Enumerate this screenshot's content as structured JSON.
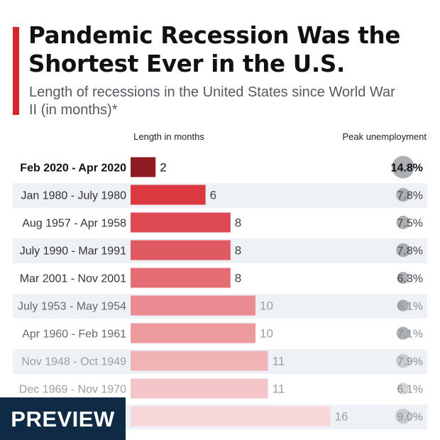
{
  "header": {
    "title": "Pandemic Recession Was the Shortest Ever in the U.S.",
    "subtitle": "Length of recessions in the United States since World War II (in months)*"
  },
  "badge": {
    "label": "PREVIEW"
  },
  "colors": {
    "accent": "#d7262e",
    "row_band": "#eef1f6",
    "dot": "#a3a7ac"
  },
  "chart_data": {
    "type": "bar",
    "orientation": "horizontal",
    "xlabel": "Length in months",
    "extra_column_label": "Peak unemployment",
    "categories": [
      "Feb 2020 - Apr 2020",
      "Jan 1980 - July 1980",
      "Aug 1957 - Apr 1958",
      "July 1990 - Mar 1991",
      "Mar 2001 - Nov 2001",
      "July 1953 - May 1954",
      "Apr 1960 - Feb 1961",
      "Nov 1948 - Oct 1949",
      "Dec 1969 - Nov 1970",
      ""
    ],
    "values": [
      2,
      6,
      8,
      8,
      8,
      10,
      10,
      11,
      11,
      16
    ],
    "value_labels": [
      "2",
      "6",
      "8",
      "8",
      "8",
      "10",
      "10",
      "11",
      "11",
      "16"
    ],
    "peak_unemployment": [
      "14.8%",
      "7.8%",
      "7.5%",
      "7.8%",
      "6.3%",
      "6.1%",
      "7.1%",
      "7.9%",
      "6.1%",
      "9.0%"
    ],
    "peak_unemployment_values": [
      14.8,
      7.8,
      7.5,
      7.8,
      6.3,
      6.1,
      7.1,
      7.9,
      6.1,
      9.0
    ],
    "bar_colors": [
      "#8e1a22",
      "#dc3840",
      "#de4a51",
      "#e05a61",
      "#e36d73",
      "#e98b90",
      "#ec9a9e",
      "#f0b3b6",
      "#f3c7c9",
      "#f7d7d9"
    ],
    "highlight": "Feb 2020 - Apr 2020",
    "xlim": [
      0,
      16
    ]
  }
}
